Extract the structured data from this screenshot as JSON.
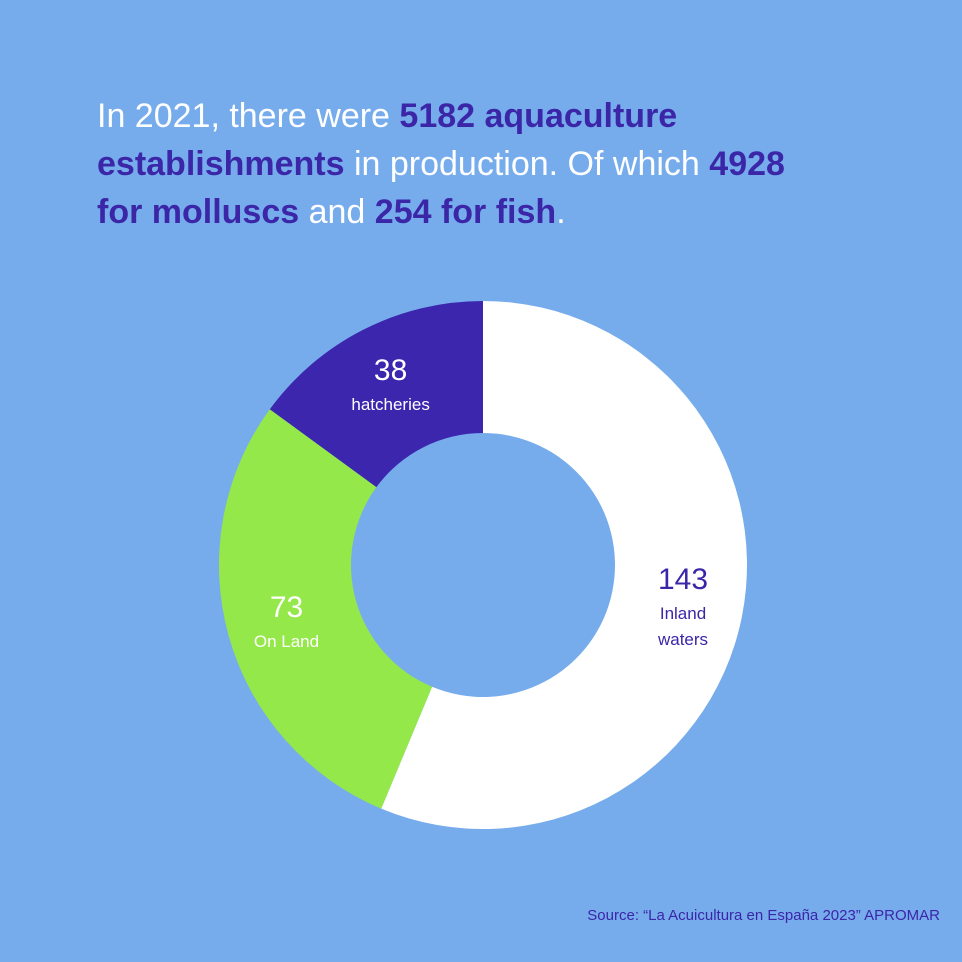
{
  "headline": {
    "part1": "In 2021, there were ",
    "highlight1": "5182 aquaculture establishments",
    "part2": " in production. Of which ",
    "highlight2": "4928 for molluscs",
    "part3": " and ",
    "highlight3": "254 for fish",
    "part4": "."
  },
  "chart_data": {
    "type": "pie",
    "donut": true,
    "slices": [
      {
        "value": 143,
        "label": "Inland waters",
        "label_lines": [
          "Inland",
          "waters"
        ],
        "color": "#ffffff",
        "text_color": "#3b26a8"
      },
      {
        "value": 73,
        "label": "On Land",
        "label_lines": [
          "On Land"
        ],
        "color": "#95e84a",
        "text_color": "#ffffff"
      },
      {
        "value": 38,
        "label": "hatcheries",
        "label_lines": [
          "hatcheries"
        ],
        "color": "#3b26ad",
        "text_color": "#ffffff"
      }
    ]
  },
  "source": "Source: “La Acuicultura en España 2023” APROMAR",
  "colors": {
    "background": "#76acec",
    "accent": "#3b26a8"
  }
}
